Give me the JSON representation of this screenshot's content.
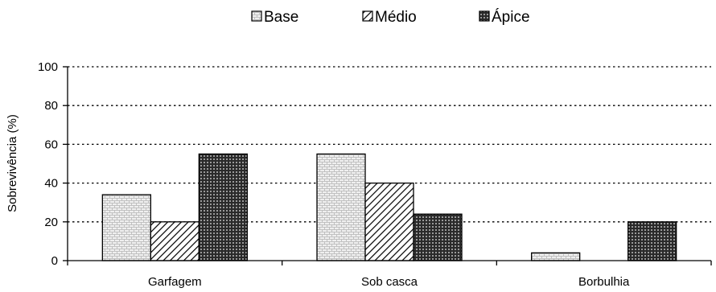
{
  "chart_data": {
    "type": "bar",
    "categories": [
      "Garfagem",
      "Sob casca",
      "Borbulhia"
    ],
    "series": [
      {
        "name": "Base",
        "values": [
          34,
          55,
          4
        ],
        "pattern": "brick",
        "fill": "#e8e8e8"
      },
      {
        "name": "Médio",
        "values": [
          20,
          40,
          0
        ],
        "pattern": "diagonal",
        "fill": "#ffffff"
      },
      {
        "name": "Ápice",
        "values": [
          55,
          24,
          20
        ],
        "pattern": "grid",
        "fill": "#303030"
      }
    ],
    "ylabel": "Sobrevivência (%)",
    "xlabel": "",
    "ylim": [
      0,
      100
    ],
    "yticks": [
      0,
      20,
      40,
      60,
      80,
      100
    ],
    "grid": "dotted horizontal",
    "legend_position": "top-center"
  }
}
